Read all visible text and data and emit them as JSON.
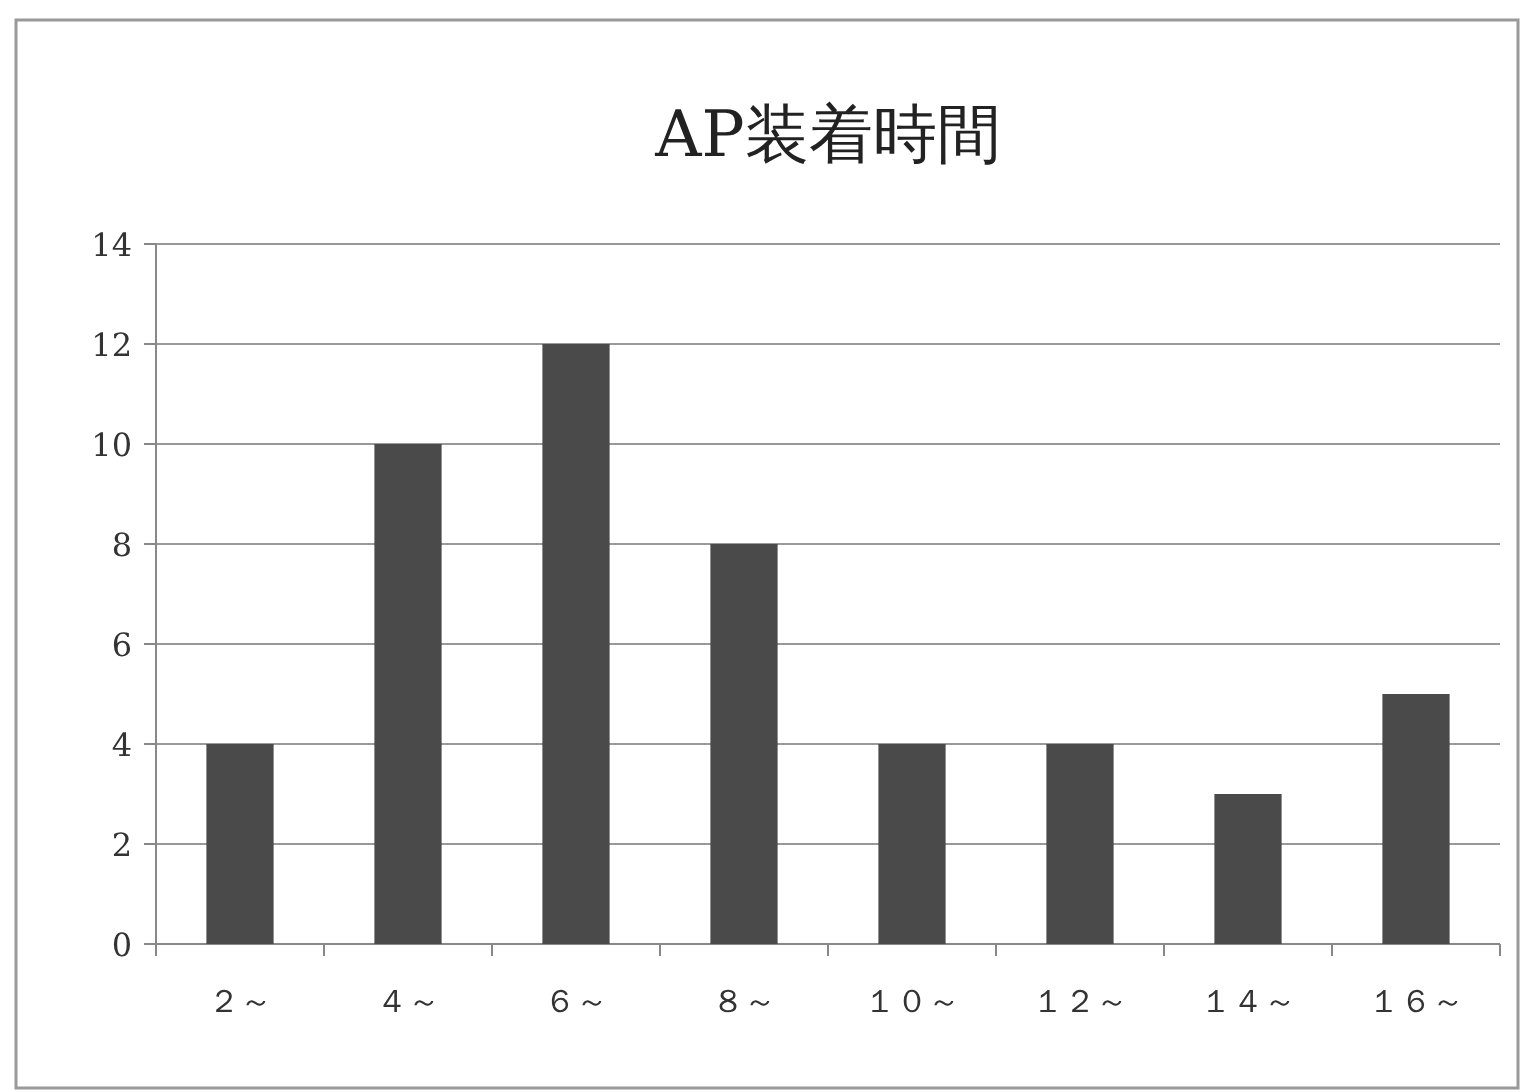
{
  "chart_data": {
    "type": "bar",
    "title": "AP装着時間",
    "categories": [
      "２～",
      "４～",
      "６～",
      "８～",
      "１０～",
      "１２～",
      "１４～",
      "１６～"
    ],
    "values": [
      4,
      10,
      12,
      8,
      4,
      4,
      3,
      5
    ],
    "color": "#4a4a4a",
    "ylim": [
      0,
      14
    ],
    "yticks": [
      0,
      2,
      4,
      6,
      8,
      10,
      12,
      14
    ],
    "grid": "y"
  }
}
